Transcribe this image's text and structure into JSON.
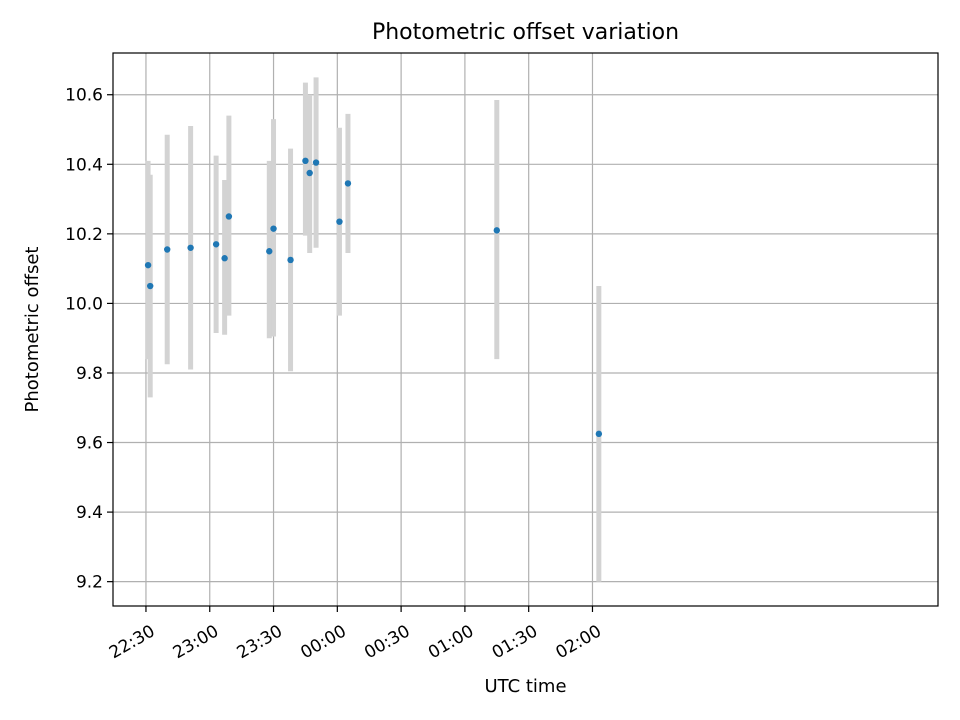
{
  "chart_data": {
    "type": "scatter",
    "title": "Photometric offset variation",
    "xlabel": "UTC time",
    "ylabel": "Photometric offset",
    "grid": true,
    "xlim_minutes_from_2230": [
      -15.5,
      372.5
    ],
    "ylim": [
      9.13,
      10.72
    ],
    "x_ticks": [
      "22:30",
      "23:00",
      "23:30",
      "00:00",
      "00:30",
      "01:00",
      "01:30",
      "02:00"
    ],
    "y_ticks": [
      9.2,
      9.4,
      9.6,
      9.8,
      10.0,
      10.2,
      10.4,
      10.6
    ],
    "y_tick_labels": [
      "9.2",
      "9.4",
      "9.6",
      "9.8",
      "10.0",
      "10.2",
      "10.4",
      "10.6"
    ],
    "points": [
      {
        "time": "22:31",
        "y": 10.11,
        "ylo": 9.84,
        "yhi": 10.41
      },
      {
        "time": "22:32",
        "y": 10.05,
        "ylo": 9.73,
        "yhi": 10.37
      },
      {
        "time": "22:40",
        "y": 10.155,
        "ylo": 9.825,
        "yhi": 10.485
      },
      {
        "time": "22:51",
        "y": 10.16,
        "ylo": 9.81,
        "yhi": 10.51
      },
      {
        "time": "23:03",
        "y": 10.17,
        "ylo": 9.915,
        "yhi": 10.425
      },
      {
        "time": "23:07",
        "y": 10.13,
        "ylo": 9.91,
        "yhi": 10.355
      },
      {
        "time": "23:09",
        "y": 10.25,
        "ylo": 9.965,
        "yhi": 10.54
      },
      {
        "time": "23:28",
        "y": 10.15,
        "ylo": 9.9,
        "yhi": 10.41
      },
      {
        "time": "23:30",
        "y": 10.215,
        "ylo": 9.905,
        "yhi": 10.53
      },
      {
        "time": "23:38",
        "y": 10.125,
        "ylo": 9.805,
        "yhi": 10.445
      },
      {
        "time": "23:45",
        "y": 10.41,
        "ylo": 10.195,
        "yhi": 10.635
      },
      {
        "time": "23:47",
        "y": 10.375,
        "ylo": 10.145,
        "yhi": 10.6
      },
      {
        "time": "23:50",
        "y": 10.405,
        "ylo": 10.16,
        "yhi": 10.65
      },
      {
        "time": "00:01",
        "y": 10.235,
        "ylo": 9.965,
        "yhi": 10.505
      },
      {
        "time": "00:05",
        "y": 10.345,
        "ylo": 10.145,
        "yhi": 10.545
      },
      {
        "time": "01:15",
        "y": 10.21,
        "ylo": 9.84,
        "yhi": 10.585
      },
      {
        "time": "02:03",
        "y": 9.625,
        "ylo": 9.2,
        "yhi": 10.05
      }
    ],
    "colors": {
      "point": "#1f77b4",
      "errorbar": "#d3d3d3",
      "grid": "#b0b0b0",
      "frame": "#000000"
    }
  }
}
